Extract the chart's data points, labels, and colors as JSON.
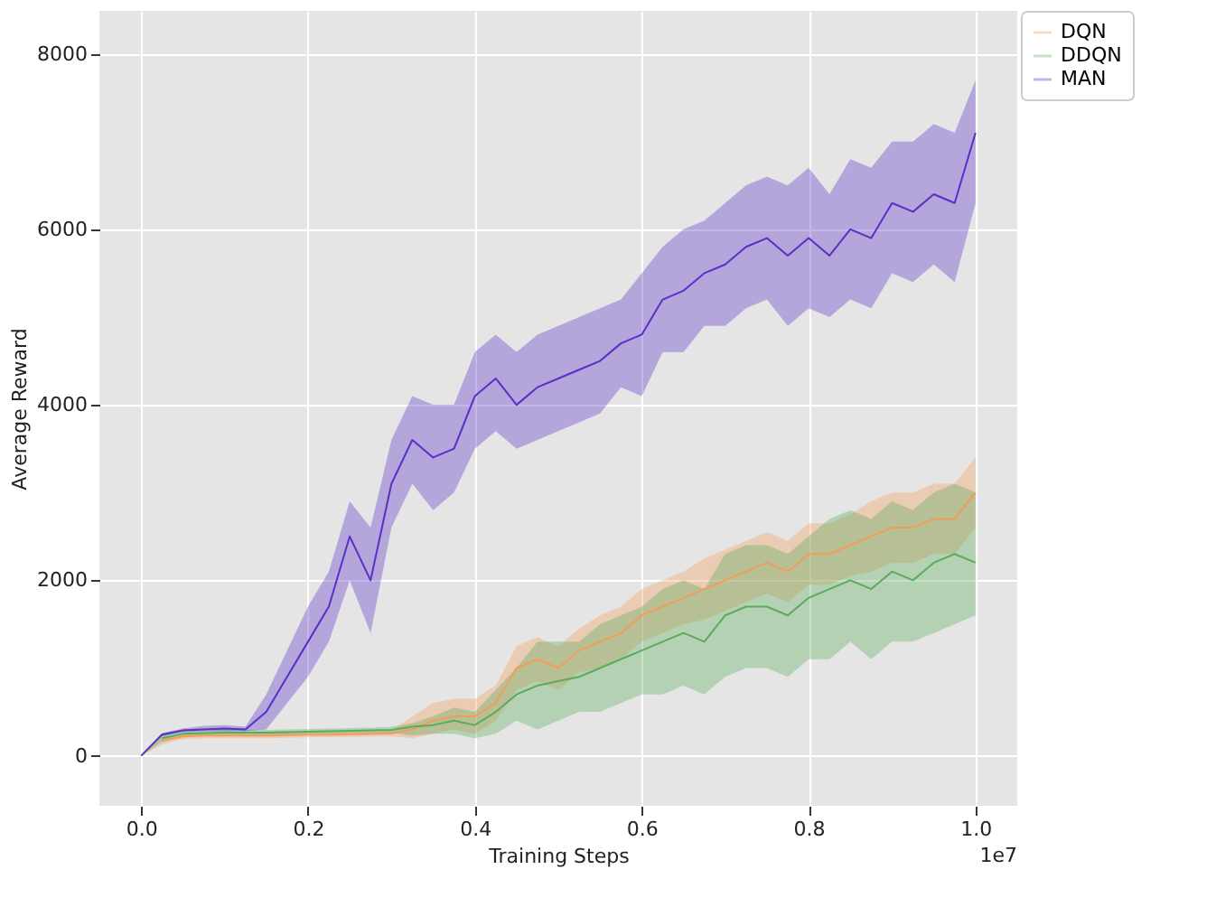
{
  "chart_data": {
    "type": "line",
    "xlabel": "Training Steps",
    "ylabel": "Average Reward",
    "annotations": [
      "1e7"
    ],
    "x": [
      0,
      0.025,
      0.05,
      0.075,
      0.1,
      0.125,
      0.15,
      0.175,
      0.2,
      0.225,
      0.25,
      0.275,
      0.3,
      0.325,
      0.35,
      0.375,
      0.4,
      0.425,
      0.45,
      0.475,
      0.5,
      0.525,
      0.55,
      0.575,
      0.6,
      0.625,
      0.65,
      0.675,
      0.7,
      0.725,
      0.75,
      0.775,
      0.8,
      0.825,
      0.85,
      0.875,
      0.9,
      0.925,
      0.95,
      0.975,
      1.0
    ],
    "series": [
      {
        "name": "DQN",
        "color": "#f39c5a",
        "values": [
          null,
          170,
          220,
          230,
          230,
          230,
          230,
          235,
          240,
          240,
          245,
          250,
          255,
          300,
          400,
          450,
          450,
          600,
          1000,
          1100,
          1000,
          1200,
          1300,
          1400,
          1600,
          1700,
          1800,
          1900,
          2000,
          2100,
          2200,
          2100,
          2300,
          2300,
          2400,
          2500,
          2600,
          2600,
          2700,
          2700,
          3000
        ],
        "lower": [
          0,
          130,
          190,
          200,
          200,
          200,
          200,
          205,
          210,
          210,
          215,
          220,
          220,
          200,
          250,
          300,
          250,
          400,
          750,
          850,
          750,
          950,
          1000,
          1100,
          1300,
          1400,
          1500,
          1550,
          1650,
          1750,
          1850,
          1750,
          1950,
          1950,
          2050,
          2100,
          2200,
          2200,
          2300,
          2300,
          2600
        ],
        "upper": [
          0,
          210,
          250,
          260,
          260,
          260,
          260,
          265,
          270,
          270,
          275,
          280,
          290,
          450,
          600,
          650,
          650,
          800,
          1250,
          1350,
          1250,
          1450,
          1600,
          1700,
          1900,
          2000,
          2100,
          2250,
          2350,
          2450,
          2550,
          2450,
          2650,
          2650,
          2750,
          2900,
          3000,
          3000,
          3100,
          3100,
          3400
        ]
      },
      {
        "name": "DDQN",
        "color": "#5aab5a",
        "values": [
          null,
          200,
          250,
          260,
          265,
          265,
          265,
          270,
          275,
          280,
          285,
          290,
          295,
          330,
          350,
          400,
          350,
          500,
          700,
          800,
          850,
          900,
          1000,
          1100,
          1200,
          1300,
          1400,
          1300,
          1600,
          1700,
          1700,
          1600,
          1800,
          1900,
          2000,
          1900,
          2100,
          2000,
          2200,
          2300,
          2200
        ],
        "lower": [
          0,
          160,
          220,
          230,
          235,
          235,
          235,
          240,
          245,
          250,
          255,
          260,
          260,
          230,
          250,
          250,
          200,
          250,
          400,
          300,
          400,
          500,
          500,
          600,
          700,
          700,
          800,
          700,
          900,
          1000,
          1000,
          900,
          1100,
          1100,
          1300,
          1100,
          1300,
          1300,
          1400,
          1500,
          1600
        ],
        "upper": [
          0,
          240,
          280,
          290,
          295,
          295,
          295,
          300,
          305,
          310,
          315,
          320,
          330,
          370,
          450,
          550,
          500,
          750,
          1000,
          1300,
          1300,
          1300,
          1500,
          1600,
          1700,
          1900,
          2000,
          1900,
          2300,
          2400,
          2400,
          2300,
          2500,
          2700,
          2800,
          2700,
          2900,
          2800,
          3000,
          3100,
          3000
        ]
      },
      {
        "name": "MAN",
        "color": "#5a2fc8",
        "values": [
          0,
          240,
          290,
          300,
          310,
          300,
          500,
          900,
          1300,
          1700,
          2500,
          2000,
          3100,
          3600,
          3400,
          3500,
          4100,
          4300,
          4000,
          4200,
          4300,
          4400,
          4500,
          4700,
          4800,
          5200,
          5300,
          5500,
          5600,
          5800,
          5900,
          5700,
          5900,
          5700,
          6000,
          5900,
          6300,
          6200,
          6400,
          6300,
          7100
        ],
        "lower": [
          0,
          220,
          270,
          280,
          280,
          280,
          300,
          600,
          900,
          1300,
          2000,
          1400,
          2600,
          3100,
          2800,
          3000,
          3500,
          3700,
          3500,
          3600,
          3700,
          3800,
          3900,
          4200,
          4100,
          4600,
          4600,
          4900,
          4900,
          5100,
          5200,
          4900,
          5100,
          5000,
          5200,
          5100,
          5500,
          5400,
          5600,
          5400,
          6300
        ],
        "upper": [
          0,
          260,
          310,
          340,
          350,
          330,
          700,
          1200,
          1700,
          2100,
          2900,
          2600,
          3600,
          4100,
          4000,
          4000,
          4600,
          4800,
          4600,
          4800,
          4900,
          5000,
          5100,
          5200,
          5500,
          5800,
          6000,
          6100,
          6300,
          6500,
          6600,
          6500,
          6700,
          6400,
          6800,
          6700,
          7000,
          7000,
          7200,
          7100,
          7700
        ]
      }
    ],
    "xlim": [
      -0.05,
      1.05
    ],
    "ylim": [
      -570,
      8490
    ],
    "xticks": [
      {
        "value": 0,
        "label": "0.0"
      },
      {
        "value": 0.2,
        "label": "0.2"
      },
      {
        "value": 0.4,
        "label": "0.4"
      },
      {
        "value": 0.6,
        "label": "0.6"
      },
      {
        "value": 0.8,
        "label": "0.8"
      },
      {
        "value": 1.0,
        "label": "1.0"
      }
    ],
    "yticks": [
      0,
      2000,
      4000,
      6000,
      8000
    ],
    "grid": true,
    "legend": "top right",
    "marker": "none",
    "line_style": "solid"
  }
}
